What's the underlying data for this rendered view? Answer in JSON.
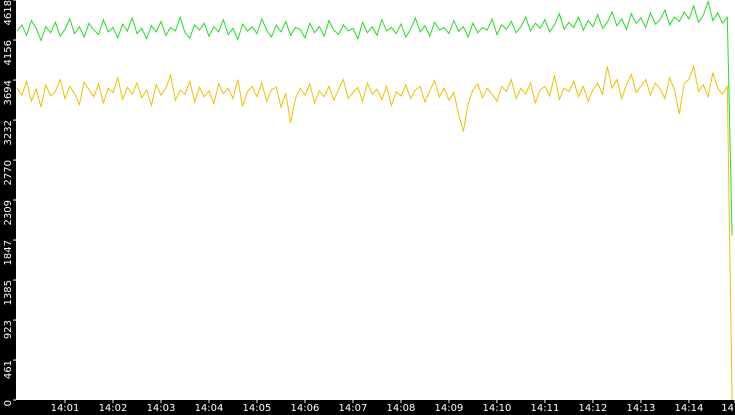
{
  "chart_data": {
    "type": "line",
    "x": [
      0,
      0.1,
      0.2,
      0.3,
      0.4,
      0.5,
      0.6,
      0.7,
      0.8,
      0.9,
      1,
      1.1,
      1.2,
      1.3,
      1.4,
      1.5,
      1.6,
      1.7,
      1.8,
      1.9,
      2,
      2.1,
      2.2,
      2.3,
      2.4,
      2.5,
      2.6,
      2.7,
      2.8,
      2.9,
      3,
      3.1,
      3.2,
      3.3,
      3.4,
      3.5,
      3.6,
      3.7,
      3.8,
      3.9,
      4,
      4.1,
      4.2,
      4.3,
      4.4,
      4.5,
      4.6,
      4.7,
      4.8,
      4.9,
      5,
      5.1,
      5.2,
      5.3,
      5.4,
      5.5,
      5.6,
      5.7,
      5.8,
      5.9,
      6,
      6.1,
      6.2,
      6.3,
      6.4,
      6.5,
      6.6,
      6.7,
      6.8,
      6.9,
      7,
      7.1,
      7.2,
      7.3,
      7.4,
      7.5,
      7.6,
      7.7,
      7.8,
      7.9,
      8,
      8.1,
      8.2,
      8.3,
      8.4,
      8.5,
      8.6,
      8.7,
      8.8,
      8.9,
      9,
      9.1,
      9.2,
      9.3,
      9.4,
      9.5,
      9.6,
      9.7,
      9.8,
      9.9,
      10,
      10.1,
      10.2,
      10.3,
      10.4,
      10.5,
      10.6,
      10.7,
      10.8,
      10.9,
      11,
      11.1,
      11.2,
      11.3,
      11.4,
      11.5,
      11.6,
      11.7,
      11.8,
      11.9,
      12,
      12.1,
      12.2,
      12.3,
      12.4,
      12.5,
      12.6,
      12.7,
      12.8,
      12.9,
      13,
      13.1,
      13.2,
      13.3,
      13.4,
      13.5,
      13.6,
      13.7,
      13.8,
      13.9,
      14,
      14.1,
      14.2,
      14.3,
      14.4,
      14.5,
      14.6,
      14.7,
      14.8,
      14.9
    ],
    "series": [
      {
        "color": "#22dd22",
        "values": [
          4260,
          4330,
          4210,
          4380,
          4290,
          4150,
          4310,
          4240,
          4360,
          4200,
          4280,
          4400,
          4230,
          4310,
          4190,
          4350,
          4270,
          4220,
          4390,
          4250,
          4300,
          4180,
          4340,
          4260,
          4410,
          4230,
          4290,
          4170,
          4320,
          4250,
          4370,
          4210,
          4300,
          4260,
          4420,
          4240,
          4180,
          4330,
          4270,
          4350,
          4200,
          4310,
          4250,
          4390,
          4220,
          4290,
          4160,
          4340,
          4260,
          4310,
          4230,
          4400,
          4270,
          4190,
          4330,
          4250,
          4370,
          4210,
          4300,
          4280,
          4180,
          4350,
          4240,
          4310,
          4200,
          4380,
          4270,
          4220,
          4330,
          4260,
          4290,
          4170,
          4360,
          4240,
          4310,
          4210,
          4390,
          4260,
          4300,
          4230,
          4340,
          4190,
          4280,
          4410,
          4250,
          4320,
          4200,
          4360,
          4270,
          4300,
          4230,
          4380,
          4260,
          4310,
          4190,
          4350,
          4240,
          4300,
          4270,
          4400,
          4220,
          4330,
          4280,
          4370,
          4240,
          4310,
          4420,
          4260,
          4350,
          4290,
          4390,
          4250,
          4330,
          4460,
          4280,
          4360,
          4300,
          4420,
          4270,
          4380,
          4310,
          4450,
          4290,
          4360,
          4480,
          4320,
          4400,
          4280,
          4460,
          4350,
          4410,
          4300,
          4470,
          4340,
          4390,
          4500,
          4330,
          4420,
          4370,
          4480,
          4400,
          4550,
          4360,
          4440,
          4600,
          4380,
          4470,
          4350,
          4420,
          1900
        ]
      },
      {
        "color": "#f0c000",
        "values": [
          3600,
          3520,
          3680,
          3450,
          3590,
          3380,
          3640,
          3510,
          3560,
          3700,
          3480,
          3620,
          3540,
          3410,
          3670,
          3580,
          3500,
          3650,
          3430,
          3600,
          3550,
          3720,
          3470,
          3610,
          3530,
          3660,
          3490,
          3580,
          3400,
          3640,
          3520,
          3600,
          3750,
          3460,
          3580,
          3530,
          3680,
          3440,
          3610,
          3500,
          3570,
          3420,
          3650,
          3540,
          3600,
          3480,
          3700,
          3390,
          3560,
          3620,
          3500,
          3660,
          3450,
          3580,
          3610,
          3380,
          3540,
          3200,
          3480,
          3600,
          3520,
          3650,
          3430,
          3570,
          3500,
          3620,
          3460,
          3590,
          3700,
          3480,
          3550,
          3610,
          3450,
          3660,
          3530,
          3590,
          3470,
          3620,
          3400,
          3560,
          3510,
          3640,
          3480,
          3580,
          3620,
          3440,
          3570,
          3690,
          3500,
          3600,
          3460,
          3550,
          3300,
          3100,
          3420,
          3580,
          3650,
          3490,
          3600,
          3530,
          3450,
          3620,
          3560,
          3700,
          3480,
          3600,
          3530,
          3660,
          3430,
          3580,
          3620,
          3510,
          3750,
          3470,
          3600,
          3560,
          3680,
          3500,
          3620,
          3450,
          3580,
          3660,
          3530,
          3850,
          3600,
          3700,
          3480,
          3640,
          3760,
          3550,
          3620,
          3700,
          3520,
          3660,
          3590,
          3480,
          3720,
          3580,
          3300,
          3650,
          3700,
          3850,
          3560,
          3640,
          3500,
          3780,
          3600,
          3530,
          3620,
          0
        ]
      }
    ],
    "xlim": [
      0,
      14.96
    ],
    "xticks": [
      {
        "value": 1,
        "label": "14:01"
      },
      {
        "value": 2,
        "label": "14:02"
      },
      {
        "value": 3,
        "label": "14:03"
      },
      {
        "value": 4,
        "label": "14:04"
      },
      {
        "value": 5,
        "label": "14:05"
      },
      {
        "value": 6,
        "label": "14:06"
      },
      {
        "value": 7,
        "label": "14:07"
      },
      {
        "value": 8,
        "label": "14:08"
      },
      {
        "value": 9,
        "label": "14:09"
      },
      {
        "value": 10,
        "label": "14:10"
      },
      {
        "value": 11,
        "label": "14:11"
      },
      {
        "value": 12,
        "label": "14:12"
      },
      {
        "value": 13,
        "label": "14:13"
      },
      {
        "value": 14,
        "label": "14:14"
      },
      {
        "value": 14.96,
        "label": "14"
      }
    ],
    "ylim": [
      0,
      4618
    ],
    "yticks": [
      0,
      461,
      923,
      1385,
      1847,
      2309,
      2770,
      3232,
      3694,
      4156,
      4618
    ]
  }
}
